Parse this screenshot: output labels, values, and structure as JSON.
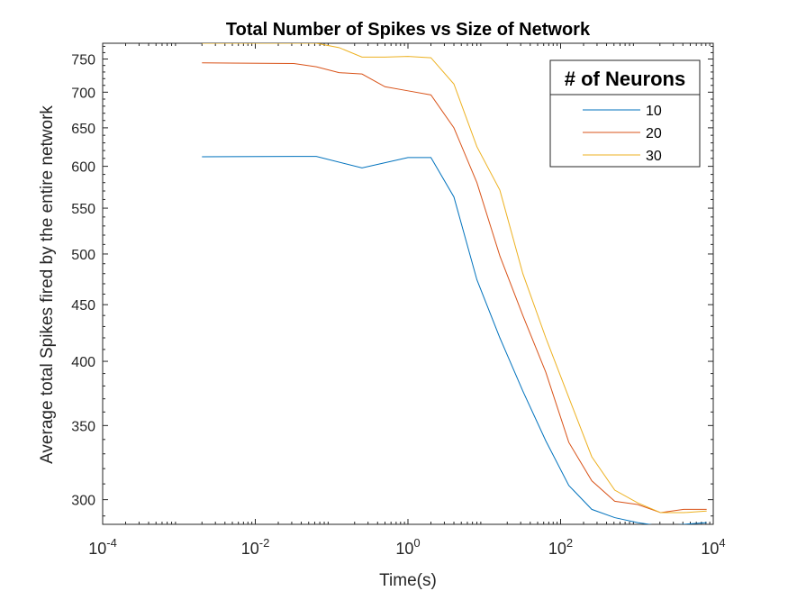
{
  "chart_data": {
    "type": "line",
    "title": "Total Number of Spikes vs Size of Network",
    "xlabel": "Time(s)",
    "ylabel": "Average total Spikes fired by the entire network",
    "xscale": "log",
    "yscale": "log",
    "xlim": [
      0.0001,
      10000
    ],
    "ylim": [
      285,
      775
    ],
    "xticks": [
      0.0001,
      0.01,
      1,
      100,
      10000
    ],
    "xtick_labels": [
      {
        "base": "10",
        "exp": "-4"
      },
      {
        "base": "10",
        "exp": "-2"
      },
      {
        "base": "10",
        "exp": "0"
      },
      {
        "base": "10",
        "exp": "2"
      },
      {
        "base": "10",
        "exp": "4"
      }
    ],
    "yticks": [
      300,
      350,
      400,
      450,
      500,
      550,
      600,
      650,
      700,
      750
    ],
    "ytick_labels": [
      "300",
      "350",
      "400",
      "450",
      "500",
      "550",
      "600",
      "650",
      "700",
      "750"
    ],
    "grid": false,
    "legend": {
      "title": "# of Neurons",
      "placement": "top-right"
    },
    "series": [
      {
        "name": "10",
        "color": "#0072BD",
        "x": [
          0.002,
          0.032,
          0.063,
          0.25,
          1,
          2,
          4,
          8,
          16,
          32,
          64,
          128,
          256,
          512,
          1024,
          2048,
          4096,
          8192
        ],
        "y": [
          612,
          612.5,
          612.5,
          598,
          611,
          611,
          563,
          474,
          420,
          376,
          339,
          309,
          294,
          289,
          286,
          284,
          285,
          286
        ]
      },
      {
        "name": "20",
        "color": "#D95319",
        "x": [
          0.002,
          0.032,
          0.063,
          0.125,
          0.25,
          0.5,
          1,
          2,
          4,
          8,
          16,
          32,
          64,
          128,
          256,
          512,
          1024,
          2048,
          4096,
          8192
        ],
        "y": [
          744,
          743,
          738,
          729,
          727,
          708,
          702,
          696,
          650,
          580,
          498,
          440,
          391,
          338,
          312,
          299,
          297,
          292,
          294,
          294
        ]
      },
      {
        "name": "30",
        "color": "#EDB120",
        "x": [
          0.002,
          0.032,
          0.063,
          0.125,
          0.25,
          0.5,
          1,
          2,
          4,
          8,
          16,
          32,
          64,
          128,
          256,
          512,
          1024,
          2048,
          4096,
          8192
        ],
        "y": [
          775,
          775,
          775,
          768,
          753,
          753,
          754,
          752,
          712,
          625,
          571,
          480,
          420,
          371,
          328,
          306,
          298,
          292,
          292,
          293
        ]
      }
    ]
  }
}
